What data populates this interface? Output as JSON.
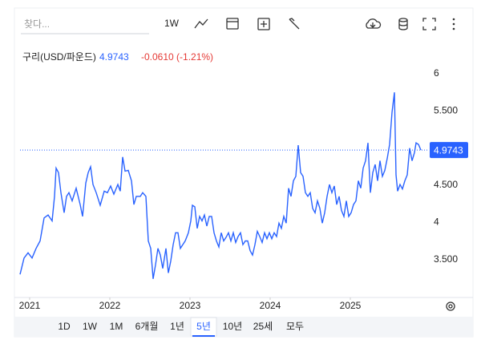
{
  "search": {
    "placeholder": "찾다..."
  },
  "toolbar": {
    "interval": "1W"
  },
  "legend": {
    "name": "구리(USD/파운드)",
    "change": "-0.0610 (-1.21%)"
  },
  "ranges": [
    "1D",
    "1W",
    "1M",
    "6개월",
    "1년",
    "5년",
    "10년",
    "25세",
    "모두"
  ],
  "chart_data": {
    "type": "line",
    "color": "#2962ff",
    "x": [
      2020.88,
      2020.93,
      2020.98,
      2021.03,
      2021.08,
      2021.13,
      2021.18,
      2021.23,
      2021.28,
      2021.31,
      2021.33,
      2021.36,
      2021.39,
      2021.43,
      2021.46,
      2021.49,
      2021.53,
      2021.58,
      2021.63,
      2021.66,
      2021.7,
      2021.73,
      2021.76,
      2021.79,
      2021.83,
      2021.88,
      2021.93,
      2021.97,
      2022.01,
      2022.05,
      2022.1,
      2022.13,
      2022.16,
      2022.19,
      2022.23,
      2022.27,
      2022.3,
      2022.33,
      2022.38,
      2022.41,
      2022.45,
      2022.48,
      2022.51,
      2022.54,
      2022.57,
      2022.6,
      2022.63,
      2022.66,
      2022.7,
      2022.73,
      2022.76,
      2022.79,
      2022.82,
      2022.85,
      2022.88,
      2022.91,
      2022.94,
      2022.98,
      2023.01,
      2023.03,
      2023.06,
      2023.09,
      2023.12,
      2023.15,
      2023.18,
      2023.21,
      2023.24,
      2023.27,
      2023.3,
      2023.33,
      2023.36,
      2023.39,
      2023.42,
      2023.45,
      2023.48,
      2023.51,
      2023.54,
      2023.57,
      2023.6,
      2023.63,
      2023.66,
      2023.69,
      2023.72,
      2023.75,
      2023.78,
      2023.81,
      2023.84,
      2023.87,
      2023.9,
      2023.93,
      2023.96,
      2023.99,
      2024.02,
      2024.05,
      2024.08,
      2024.11,
      2024.14,
      2024.17,
      2024.2,
      2024.23,
      2024.26,
      2024.29,
      2024.32,
      2024.35,
      2024.38,
      2024.41,
      2024.44,
      2024.47,
      2024.5,
      2024.53,
      2024.56,
      2024.59,
      2024.62,
      2024.65,
      2024.68,
      2024.71,
      2024.74,
      2024.77,
      2024.8,
      2024.83,
      2024.86,
      2024.89,
      2024.92,
      2024.95,
      2024.98,
      2025.01,
      2025.04,
      2025.07,
      2025.1,
      2025.13,
      2025.16,
      2025.19,
      2025.22,
      2025.25,
      2025.28,
      2025.31,
      2025.34,
      2025.37,
      2025.4,
      2025.43,
      2025.46,
      2025.49,
      2025.52,
      2025.55,
      2025.57,
      2025.59,
      2025.62,
      2025.65,
      2025.68,
      2025.71,
      2025.74,
      2025.77,
      2025.8,
      2025.82,
      2025.85,
      2025.88
    ],
    "values": [
      3.3,
      3.52,
      3.59,
      3.52,
      3.65,
      3.75,
      4.06,
      4.1,
      4.02,
      4.35,
      4.73,
      4.67,
      4.4,
      4.13,
      4.35,
      4.4,
      4.29,
      4.46,
      4.24,
      4.08,
      4.53,
      4.67,
      4.75,
      4.51,
      4.4,
      4.23,
      4.42,
      4.4,
      4.49,
      4.38,
      4.51,
      4.42,
      4.88,
      4.69,
      4.7,
      4.56,
      4.24,
      4.35,
      4.35,
      4.4,
      4.35,
      3.75,
      3.65,
      3.24,
      3.43,
      3.65,
      3.56,
      3.38,
      3.65,
      3.32,
      3.48,
      3.7,
      3.86,
      3.86,
      3.65,
      3.7,
      3.75,
      3.86,
      4.02,
      4.23,
      4.21,
      3.92,
      4.08,
      4.02,
      4.1,
      3.95,
      4.08,
      4.08,
      3.86,
      3.75,
      3.67,
      3.86,
      3.75,
      3.8,
      3.86,
      3.75,
      3.86,
      3.73,
      3.81,
      3.86,
      3.7,
      3.75,
      3.75,
      3.62,
      3.56,
      3.7,
      3.88,
      3.81,
      3.73,
      3.86,
      3.78,
      3.86,
      3.78,
      3.86,
      3.81,
      3.99,
      3.92,
      4.08,
      3.99,
      4.46,
      4.35,
      4.56,
      4.62,
      5.04,
      4.67,
      4.62,
      4.4,
      4.35,
      4.4,
      4.19,
      4.13,
      4.29,
      4.19,
      3.99,
      4.13,
      4.35,
      4.51,
      4.4,
      4.49,
      4.24,
      4.35,
      4.16,
      4.08,
      4.29,
      4.08,
      4.13,
      4.24,
      4.29,
      4.56,
      4.46,
      4.73,
      4.83,
      5.07,
      4.4,
      4.67,
      4.78,
      4.56,
      4.83,
      4.62,
      4.7,
      4.86,
      5.05,
      5.48,
      5.75,
      4.64,
      4.42,
      4.51,
      4.45,
      4.56,
      4.64,
      5.0,
      4.83,
      4.94,
      5.07,
      5.05,
      4.9743
    ],
    "xlim": [
      2020.88,
      2025.98
    ],
    "xticks": [
      2021,
      2022,
      2023,
      2024,
      2025
    ],
    "ylim": [
      3.0,
      6.4
    ],
    "yticks": [
      {
        "value": 3.5,
        "label": "3.500"
      },
      4,
      {
        "value": 4.5,
        "label": "4.500"
      },
      {
        "value": 5.5,
        "label": "5.500"
      },
      6
    ],
    "grid": false
  }
}
